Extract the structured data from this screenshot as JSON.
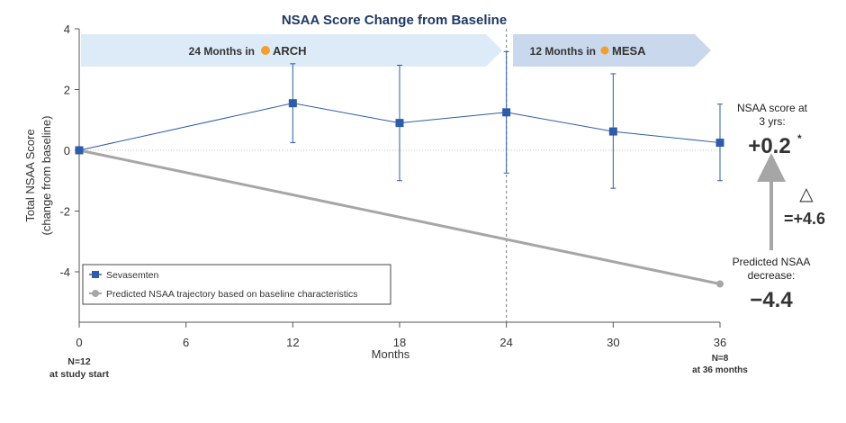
{
  "chart_data": {
    "type": "line",
    "title": "NSAA Score Change from Baseline",
    "xlabel": "Months",
    "ylabel_line1": "Total NSAA Score",
    "ylabel_line2": "(change from baseline)",
    "xlim": [
      0,
      36
    ],
    "ylim": [
      -5.5,
      4
    ],
    "x_ticks": [
      0,
      6,
      12,
      18,
      24,
      30,
      36
    ],
    "x_tick_labels": [
      "0",
      "6",
      "12",
      "18",
      "24",
      "30",
      "36"
    ],
    "y_ticks": [
      4,
      2,
      0,
      -2,
      -4
    ],
    "y_tick_labels": [
      "4",
      "2",
      "0",
      "-2",
      "-4"
    ],
    "series": [
      {
        "name": "Sevasemten",
        "color": "#2e5ca8",
        "x": [
          0,
          12,
          18,
          24,
          30,
          36
        ],
        "values": [
          0,
          1.55,
          0.9,
          1.25,
          0.62,
          0.25
        ],
        "err_low": [
          0,
          0.25,
          -1.0,
          -0.75,
          -1.25,
          -1.0
        ],
        "err_high": [
          0,
          2.85,
          2.8,
          3.25,
          2.52,
          1.52
        ]
      },
      {
        "name": "Predicted NSAA trajectory based on baseline characteristics",
        "color": "#a6a6a6",
        "x": [
          0,
          36
        ],
        "values": [
          0,
          -4.4
        ]
      }
    ],
    "vline_x": 24,
    "period_banners": {
      "arch": {
        "label": "24 Months in",
        "brand": "ARCH"
      },
      "mesa": {
        "label": "12 Months in",
        "brand": "MESA"
      }
    },
    "legend_position": "bottom-left"
  },
  "annotations": {
    "n_start": {
      "line1": "N=12",
      "line2": "at study start"
    },
    "n_end": {
      "line1": "N=8",
      "line2": "at 36 months"
    },
    "score_label_line1": "NSAA score at",
    "score_label_line2": "3 yrs:",
    "score_value": "+0.2",
    "score_asterisk": "*",
    "delta_symbol": "△",
    "delta_value": "=+4.6",
    "predicted_label_line1": "Predicted NSAA",
    "predicted_label_line2": "decrease:",
    "predicted_value": "−4.4"
  },
  "colors": {
    "sevasemten": "#2e5ca8",
    "predicted": "#a6a6a6",
    "delta_green": "#2eb84b",
    "banner_arch": "#dcebf7",
    "banner_mesa": "#c9d8ec",
    "title": "#1f3864"
  }
}
